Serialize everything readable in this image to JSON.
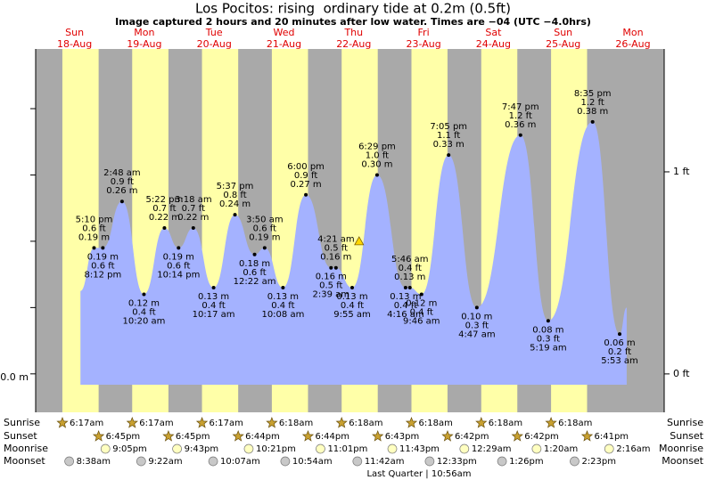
{
  "chart_data": {
    "type": "tide",
    "title": "Los Pocitos: rising  ordinary tide at 0.2m (0.5ft)",
    "subtitle": "Image captured 2 hours and 20 minutes after low water. Times are −04 (UTC −4.0hrs)",
    "day_names": [
      "Sun",
      "Mon",
      "Tue",
      "Wed",
      "Thu",
      "Fri",
      "Sat",
      "Sun",
      "Mon"
    ],
    "day_dates": [
      "18-Aug",
      "19-Aug",
      "20-Aug",
      "21-Aug",
      "22-Aug",
      "23-Aug",
      "24-Aug",
      "25-Aug",
      "26-Aug"
    ],
    "xlim": [
      -2.9,
      213.2
    ],
    "ylim": [
      -0.058,
      0.49
    ],
    "y2lim": [
      -0.19,
      1.608
    ],
    "yticks": [
      {
        "value": 0,
        "label": "0.0 m"
      }
    ],
    "yminor": [
      0.1,
      0.2,
      0.3,
      0.4
    ],
    "y2ticks": [
      {
        "value": 0,
        "label": "0 ft"
      },
      {
        "value": 1,
        "label": "1 ft"
      }
    ],
    "color": "#a4b2ff",
    "day_color": "#ffffa8",
    "night_color": "#a9a9a9",
    "x": [
      12.5,
      17.17,
      20.2,
      26.8,
      34.33,
      41.37,
      46.23,
      51.3,
      58.28,
      65.62,
      72.37,
      75.83,
      82.13,
      90.0,
      98.65,
      100.35,
      105.92,
      114.48,
      124.27,
      125.77,
      129.77,
      139.08,
      148.78,
      163.78,
      173.32,
      188.58,
      197.88,
      200.3
    ],
    "values": [
      0.125,
      0.19,
      0.19,
      0.26,
      0.12,
      0.22,
      0.19,
      0.22,
      0.13,
      0.24,
      0.18,
      0.19,
      0.13,
      0.27,
      0.16,
      0.16,
      0.13,
      0.3,
      0.13,
      0.13,
      0.12,
      0.33,
      0.1,
      0.36,
      0.08,
      0.38,
      0.06,
      0.1
    ],
    "value_labels": [
      null,
      "0.19 m",
      "0.19 m",
      "0.26 m",
      "0.12 m",
      "0.22 m",
      "0.19 m",
      "0.22 m",
      "0.13 m",
      "0.24 m",
      "0.18 m",
      "0.19 m",
      "0.13 m",
      "0.27 m",
      "0.16 m",
      "0.16 m",
      "0.13 m",
      "0.30 m",
      "0.13 m",
      "0.13 m",
      "0.12 m",
      "0.33 m",
      "0.10 m",
      "0.36 m",
      "0.08 m",
      "0.38 m",
      "0.06 m",
      null
    ],
    "ft_labels": [
      null,
      "0.6 ft",
      "0.6 ft",
      "0.9 ft",
      "0.4 ft",
      "0.7 ft",
      "0.6 ft",
      "0.7 ft",
      "0.4 ft",
      "0.8 ft",
      "0.6 ft",
      "0.6 ft",
      "0.4 ft",
      "0.9 ft",
      "0.5 ft",
      "0.5 ft",
      "0.4 ft",
      "1.0 ft",
      "0.4 ft",
      "0.4 ft",
      "0.4 ft",
      "1.1 ft",
      "0.3 ft",
      "1.2 ft",
      "0.3 ft",
      "1.2 ft",
      "0.2 ft",
      null
    ],
    "time_labels": [
      null,
      "5:10 pm",
      "8:12 pm",
      "2:48 am",
      "10:20 am",
      "5:22 pm",
      "10:14 pm",
      "3:18 am",
      "10:17 am",
      "5:37 pm",
      "12:22 am",
      "3:50 am",
      "10:08 am",
      "6:00 pm",
      "2:39 am",
      "4:21 am",
      "9:55 am",
      "6:29 pm",
      "4:16 am",
      "5:46 am",
      "9:46 am",
      "7:05 pm",
      "4:47 am",
      "7:47 pm",
      "5:19 am",
      "8:35 pm",
      "5:53 am",
      null
    ],
    "now": {
      "x": 108.3,
      "value": 0.2
    },
    "row_labels": [
      "Sunrise",
      "Sunset",
      "Moonrise",
      "Moonset"
    ],
    "sunrise": [
      "6:17am",
      "6:17am",
      "6:17am",
      "6:18am",
      "6:18am",
      "6:18am",
      "6:18am",
      "6:18am",
      null
    ],
    "sunset": [
      "6:45pm",
      "6:45pm",
      "6:44pm",
      "6:44pm",
      "6:43pm",
      "6:42pm",
      "6:42pm",
      "6:41pm",
      null
    ],
    "moonrise": [
      "9:05pm",
      "9:43pm",
      "10:21pm",
      "11:01pm",
      "11:43pm",
      null,
      "12:29am",
      "1:20am",
      "2:16am"
    ],
    "moonset": [
      "8:38am",
      "9:22am",
      "10:07am",
      "10:54am",
      "11:42am",
      "12:33pm",
      "1:26pm",
      "2:23pm",
      null
    ],
    "moon_phase": "Last Quarter | 10:56am"
  }
}
